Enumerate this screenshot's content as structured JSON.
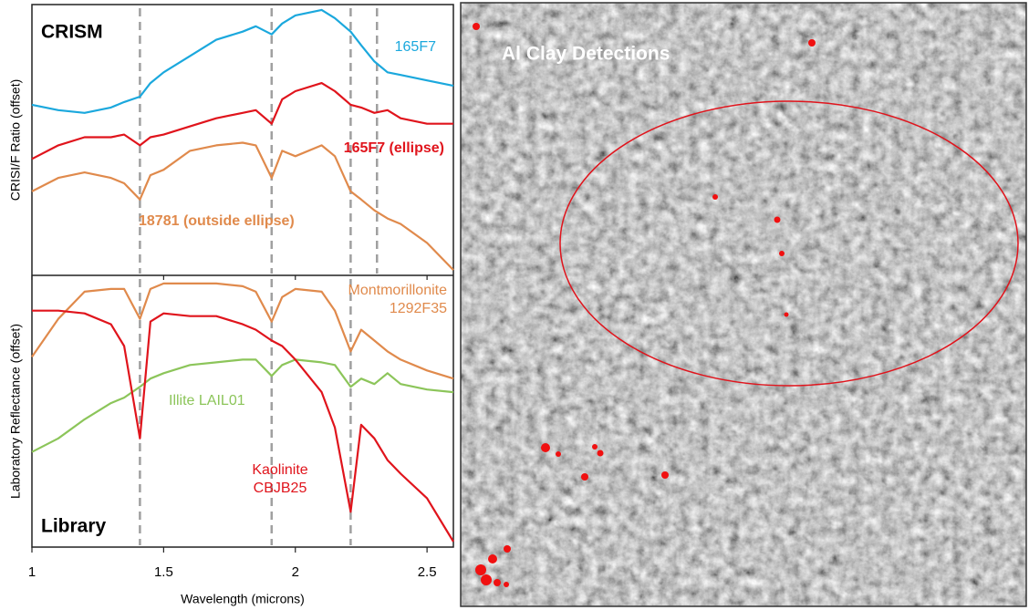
{
  "chart_data": [
    {
      "type": "line",
      "title": "CRISM",
      "y_label": "CRISI/F Ratio (offset)",
      "x": [
        1.0,
        1.1,
        1.2,
        1.3,
        1.35,
        1.41,
        1.45,
        1.5,
        1.6,
        1.7,
        1.8,
        1.85,
        1.91,
        1.95,
        2.0,
        2.1,
        2.15,
        2.21,
        2.25,
        2.3,
        2.35,
        2.4,
        2.5,
        2.6
      ],
      "xlim": [
        1,
        2.6
      ],
      "ylim": [
        0,
        100
      ],
      "reference_lines": [
        1.41,
        1.91,
        2.21,
        2.31
      ],
      "series": [
        {
          "name": "165F7",
          "color": "#1ba8dd",
          "values": [
            63,
            61,
            60,
            62,
            64,
            66,
            71,
            75,
            81,
            87,
            90,
            92,
            89,
            93,
            96,
            98,
            95,
            90,
            85,
            79,
            75,
            74,
            72,
            70
          ]
        },
        {
          "name": "165F7 (ellipse)",
          "color": "#e0141c",
          "values": [
            43,
            48,
            51,
            51,
            52,
            48,
            51,
            52,
            55,
            58,
            60,
            61,
            56,
            65,
            68,
            71,
            68,
            63,
            62,
            60,
            61,
            58,
            56,
            56
          ]
        },
        {
          "name": "18781 (outside ellipse)",
          "color": "#e08a4c",
          "values": [
            31,
            36,
            38,
            36,
            34,
            28,
            37,
            39,
            46,
            48,
            49,
            48,
            36,
            46,
            44,
            48,
            44,
            31,
            28,
            24,
            21,
            19,
            12,
            2
          ]
        }
      ]
    },
    {
      "type": "line",
      "title": "Library",
      "y_label": "Laboratory Reflectance (offset)",
      "x_label": "Wavelength (microns)",
      "x": [
        1.0,
        1.1,
        1.2,
        1.3,
        1.35,
        1.41,
        1.45,
        1.5,
        1.6,
        1.7,
        1.8,
        1.85,
        1.91,
        1.95,
        2.0,
        2.1,
        2.15,
        2.21,
        2.25,
        2.3,
        2.35,
        2.4,
        2.5,
        2.6
      ],
      "xlim": [
        1,
        2.6
      ],
      "ylim": [
        0,
        100
      ],
      "xticks": [
        1,
        1.5,
        2,
        2.5
      ],
      "reference_lines": [
        1.41,
        1.91,
        2.21
      ],
      "series": [
        {
          "name": "Montmorillonite 1292F35",
          "color": "#e08a4c",
          "values": [
            70,
            84,
            94,
            95,
            95,
            84,
            95,
            97,
            97,
            97,
            96,
            94,
            83,
            92,
            95,
            94,
            87,
            72,
            80,
            76,
            72,
            69,
            65,
            62
          ]
        },
        {
          "name": "Illite LAIL01",
          "color": "#8cc55a",
          "values": [
            35,
            40,
            47,
            53,
            55,
            59,
            62,
            64,
            67,
            68,
            69,
            69,
            63,
            67,
            69,
            68,
            67,
            59,
            62,
            60,
            64,
            60,
            58,
            57
          ]
        },
        {
          "name": "Kaolinite CBJB25",
          "color": "#e0141c",
          "values": [
            87,
            87,
            86,
            82,
            74,
            40,
            83,
            86,
            85,
            85,
            82,
            80,
            76,
            74,
            69,
            57,
            44,
            13,
            45,
            40,
            32,
            27,
            18,
            2
          ]
        }
      ]
    }
  ],
  "image": {
    "title": "Al Clay Detections"
  }
}
